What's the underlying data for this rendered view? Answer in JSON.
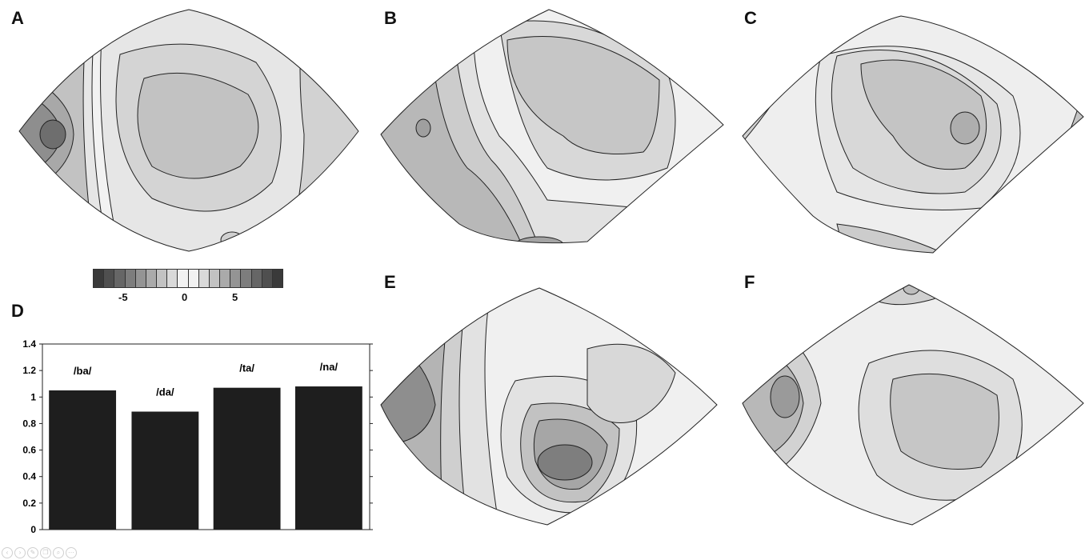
{
  "panels": {
    "A": {
      "label": "A"
    },
    "B": {
      "label": "B"
    },
    "C": {
      "label": "C"
    },
    "D": {
      "label": "D"
    },
    "E": {
      "label": "E"
    },
    "F": {
      "label": "F"
    }
  },
  "colorbar": {
    "ticks": [
      "-5",
      "0",
      "5"
    ],
    "shades": [
      "#3a3a3a",
      "#4f4f4f",
      "#666666",
      "#7d7d7d",
      "#949494",
      "#aaaaaa",
      "#c2c2c2",
      "#d9d9d9",
      "#f2f2f2",
      "#f2f2f2",
      "#d9d9d9",
      "#c2c2c2",
      "#aaaaaa",
      "#949494",
      "#7d7d7d",
      "#666666",
      "#4f4f4f",
      "#3a3a3a"
    ]
  },
  "chart_data": {
    "type": "bar",
    "categories": [
      "/ba/",
      "/da/",
      "/ta/",
      "/na/"
    ],
    "values": [
      1.05,
      0.89,
      1.07,
      1.08
    ],
    "ylim": [
      0,
      1.4
    ],
    "yticks": [
      "0",
      "0.2",
      "0.4",
      "0.6",
      "0.8",
      "1",
      "1.2",
      "1.4"
    ],
    "bar_color": "#1e1e1e",
    "grid": false
  },
  "viewer": {
    "icons": [
      "prev-icon",
      "next-icon",
      "edit-icon",
      "copy-icon",
      "zoom-icon",
      "more-icon"
    ],
    "glyphs": [
      "‹",
      "›",
      "✎",
      "❐",
      "⌕",
      "⋯"
    ]
  }
}
